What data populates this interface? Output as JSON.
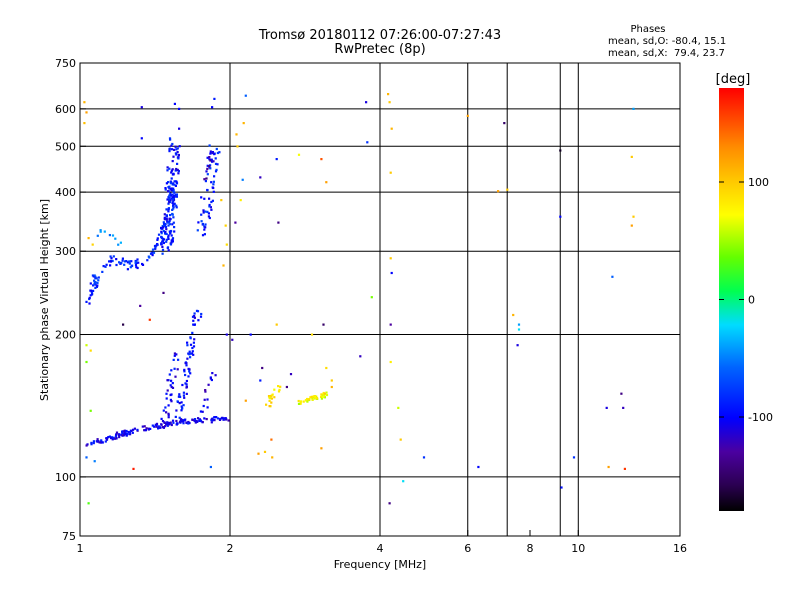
{
  "title_line1": "Tromsø 20180112 07:26:00-07:27:43",
  "title_line2": "RwPretec (8p)",
  "stats": {
    "heading": "Phases",
    "o_line": "mean, sd,O: -80.4, 15.1",
    "x_line": "mean, sd,X:  79.4, 23.7"
  },
  "colorbar": {
    "label": "[deg]",
    "ticks": [
      "100",
      "0",
      "-100"
    ],
    "tick_values": [
      100,
      0,
      -100
    ],
    "range": [
      -180,
      180
    ]
  },
  "chart_data": {
    "type": "scatter",
    "xlabel": "Frequency [MHz]",
    "ylabel": "Stationary phase Virtual Height [km]",
    "xscale": "log",
    "yscale": "log",
    "xlim": [
      1,
      16
    ],
    "ylim": [
      75,
      750
    ],
    "x_ticks": [
      1,
      2,
      4,
      6,
      8,
      10,
      16
    ],
    "x_tick_labels": [
      "1",
      "2",
      "4",
      "6",
      "8",
      "10",
      "16"
    ],
    "y_ticks": [
      75,
      100,
      200,
      300,
      400,
      500,
      600,
      750
    ],
    "y_tick_labels": [
      "75",
      "100",
      "200",
      "300",
      "400",
      "500",
      "600",
      "750"
    ],
    "grid_x": [
      2,
      4,
      6,
      7.2,
      9.2,
      10
    ],
    "grid_y": [
      100,
      200,
      300,
      400,
      500,
      600
    ],
    "grid": true,
    "traces": [
      {
        "f": [
          1.03,
          1.06,
          1.09,
          1.12,
          1.16,
          1.2,
          1.24,
          1.27,
          1.3,
          1.33,
          1.36,
          1.39,
          1.42,
          1.45,
          1.48,
          1.52,
          1.56,
          1.6,
          1.65,
          1.7,
          1.75,
          1.8,
          1.85,
          1.9,
          1.95,
          1.98
        ],
        "h": [
          116,
          118,
          119,
          120,
          121,
          123,
          124,
          125,
          126,
          126,
          127,
          127,
          128,
          128,
          129,
          130,
          130,
          131,
          131,
          131,
          132,
          132,
          132,
          133,
          133,
          133
        ],
        "phase": -105,
        "jitter": 2.5,
        "n": 170
      },
      {
        "f": [
          1.48,
          1.5,
          1.52,
          1.55,
          1.57
        ],
        "h": [
          130,
          142,
          158,
          170,
          185
        ],
        "phase": -100,
        "jitter": 4,
        "n": 35
      },
      {
        "f": [
          1.58,
          1.61,
          1.64,
          1.66,
          1.68,
          1.7,
          1.73
        ],
        "h": [
          135,
          150,
          168,
          185,
          200,
          215,
          225
        ],
        "phase": -95,
        "jitter": 4,
        "n": 70
      },
      {
        "f": [
          1.76,
          1.8,
          1.86
        ],
        "h": [
          135,
          150,
          165
        ],
        "phase": -110,
        "jitter": 3,
        "n": 14
      },
      {
        "f": [
          1.02,
          1.05,
          1.08,
          1.12,
          1.16,
          1.2,
          1.25,
          1.3,
          1.35,
          1.38,
          1.41,
          1.44,
          1.46,
          1.48,
          1.5,
          1.52,
          1.53
        ],
        "h": [
          228,
          245,
          262,
          280,
          290,
          285,
          280,
          282,
          285,
          290,
          300,
          310,
          320,
          335,
          350,
          380,
          420
        ],
        "phase": -85,
        "jitter": 4,
        "n": 150
      },
      {
        "f": [
          1.5,
          1.51,
          1.52,
          1.53,
          1.54,
          1.55
        ],
        "h": [
          300,
          340,
          380,
          420,
          470,
          510
        ],
        "phase": -95,
        "jitter": 6,
        "n": 130
      },
      {
        "f": [
          1.74,
          1.77,
          1.8,
          1.82,
          1.84,
          1.86
        ],
        "h": [
          330,
          350,
          380,
          410,
          450,
          500
        ],
        "phase": -90,
        "jitter": 6,
        "n": 60
      },
      {
        "f": [
          1.78,
          1.81,
          1.84
        ],
        "h": [
          420,
          450,
          480
        ],
        "phase": -125,
        "jitter": 4,
        "n": 10
      },
      {
        "f": [
          2.38,
          2.42,
          2.46,
          2.5
        ],
        "h": [
          142,
          148,
          152,
          155
        ],
        "phase": 85,
        "jitter": 3,
        "n": 18
      },
      {
        "f": [
          2.75,
          2.85,
          2.95,
          3.05,
          3.12
        ],
        "h": [
          144,
          146,
          147,
          148,
          150
        ],
        "phase": 70,
        "jitter": 2,
        "n": 45
      },
      {
        "f": [
          1.1,
          1.16,
          1.22
        ],
        "h": [
          330,
          320,
          310
        ],
        "phase": -40,
        "jitter": 4,
        "n": 8
      }
    ],
    "points": [
      {
        "f": 1.02,
        "h": 620,
        "phase": 110
      },
      {
        "f": 1.03,
        "h": 590,
        "phase": 120
      },
      {
        "f": 1.02,
        "h": 560,
        "phase": 105
      },
      {
        "f": 1.04,
        "h": 320,
        "phase": 110
      },
      {
        "f": 1.06,
        "h": 310,
        "phase": 95
      },
      {
        "f": 1.03,
        "h": 190,
        "phase": 60
      },
      {
        "f": 1.05,
        "h": 185,
        "phase": 90
      },
      {
        "f": 1.03,
        "h": 175,
        "phase": 40
      },
      {
        "f": 1.05,
        "h": 138,
        "phase": 40
      },
      {
        "f": 1.03,
        "h": 110,
        "phase": -60
      },
      {
        "f": 1.07,
        "h": 108,
        "phase": -50
      },
      {
        "f": 1.04,
        "h": 88,
        "phase": 30
      },
      {
        "f": 1.1,
        "h": 330,
        "phase": -40
      },
      {
        "f": 1.22,
        "h": 210,
        "phase": -160
      },
      {
        "f": 1.32,
        "h": 230,
        "phase": -130
      },
      {
        "f": 1.38,
        "h": 215,
        "phase": 160
      },
      {
        "f": 1.33,
        "h": 605,
        "phase": -110
      },
      {
        "f": 1.33,
        "h": 520,
        "phase": -100
      },
      {
        "f": 1.28,
        "h": 104,
        "phase": 170
      },
      {
        "f": 1.47,
        "h": 245,
        "phase": -140
      },
      {
        "f": 1.55,
        "h": 615,
        "phase": -100
      },
      {
        "f": 1.58,
        "h": 545,
        "phase": -110
      },
      {
        "f": 1.58,
        "h": 600,
        "phase": -100
      },
      {
        "f": 1.75,
        "h": 390,
        "phase": -100
      },
      {
        "f": 1.84,
        "h": 605,
        "phase": -100
      },
      {
        "f": 1.86,
        "h": 630,
        "phase": -90
      },
      {
        "f": 1.83,
        "h": 105,
        "phase": -60
      },
      {
        "f": 1.92,
        "h": 385,
        "phase": 100
      },
      {
        "f": 1.96,
        "h": 340,
        "phase": 95
      },
      {
        "f": 1.97,
        "h": 310,
        "phase": 90
      },
      {
        "f": 1.94,
        "h": 280,
        "phase": 110
      },
      {
        "f": 1.97,
        "h": 200,
        "phase": -110
      },
      {
        "f": 2.02,
        "h": 195,
        "phase": -120
      },
      {
        "f": 2.05,
        "h": 345,
        "phase": -130
      },
      {
        "f": 2.06,
        "h": 530,
        "phase": 110
      },
      {
        "f": 2.07,
        "h": 500,
        "phase": 100
      },
      {
        "f": 2.1,
        "h": 385,
        "phase": 80
      },
      {
        "f": 2.13,
        "h": 560,
        "phase": 110
      },
      {
        "f": 2.15,
        "h": 640,
        "phase": -60
      },
      {
        "f": 2.12,
        "h": 425,
        "phase": -50
      },
      {
        "f": 2.15,
        "h": 145,
        "phase": 120
      },
      {
        "f": 2.2,
        "h": 200,
        "phase": -100
      },
      {
        "f": 2.3,
        "h": 430,
        "phase": -120
      },
      {
        "f": 2.32,
        "h": 170,
        "phase": -140
      },
      {
        "f": 2.3,
        "h": 160,
        "phase": -90
      },
      {
        "f": 2.28,
        "h": 112,
        "phase": 120
      },
      {
        "f": 2.35,
        "h": 113,
        "phase": 100
      },
      {
        "f": 2.43,
        "h": 110,
        "phase": 110
      },
      {
        "f": 2.42,
        "h": 120,
        "phase": 140
      },
      {
        "f": 2.48,
        "h": 470,
        "phase": -90
      },
      {
        "f": 2.48,
        "h": 210,
        "phase": 100
      },
      {
        "f": 2.5,
        "h": 345,
        "phase": -140
      },
      {
        "f": 2.6,
        "h": 155,
        "phase": -140
      },
      {
        "f": 2.65,
        "h": 165,
        "phase": -120
      },
      {
        "f": 2.75,
        "h": 480,
        "phase": 70
      },
      {
        "f": 2.92,
        "h": 200,
        "phase": 90
      },
      {
        "f": 3.05,
        "h": 470,
        "phase": 150
      },
      {
        "f": 3.12,
        "h": 420,
        "phase": 120
      },
      {
        "f": 3.05,
        "h": 115,
        "phase": 120
      },
      {
        "f": 3.1,
        "h": 150,
        "phase": 100
      },
      {
        "f": 3.12,
        "h": 170,
        "phase": 90
      },
      {
        "f": 3.08,
        "h": 210,
        "phase": -150
      },
      {
        "f": 3.2,
        "h": 160,
        "phase": 100
      },
      {
        "f": 3.2,
        "h": 155,
        "phase": 110
      },
      {
        "f": 3.75,
        "h": 620,
        "phase": -110
      },
      {
        "f": 3.77,
        "h": 510,
        "phase": -80
      },
      {
        "f": 3.85,
        "h": 240,
        "phase": 40
      },
      {
        "f": 3.65,
        "h": 180,
        "phase": -120
      },
      {
        "f": 4.15,
        "h": 645,
        "phase": 110
      },
      {
        "f": 4.18,
        "h": 620,
        "phase": 100
      },
      {
        "f": 4.2,
        "h": 440,
        "phase": 100
      },
      {
        "f": 4.22,
        "h": 545,
        "phase": 110
      },
      {
        "f": 4.2,
        "h": 290,
        "phase": 100
      },
      {
        "f": 4.22,
        "h": 270,
        "phase": -100
      },
      {
        "f": 4.2,
        "h": 210,
        "phase": -130
      },
      {
        "f": 4.2,
        "h": 175,
        "phase": 80
      },
      {
        "f": 4.18,
        "h": 88,
        "phase": -140
      },
      {
        "f": 4.35,
        "h": 140,
        "phase": 60
      },
      {
        "f": 4.4,
        "h": 120,
        "phase": 100
      },
      {
        "f": 4.45,
        "h": 98,
        "phase": -20
      },
      {
        "f": 4.9,
        "h": 110,
        "phase": -80
      },
      {
        "f": 6.0,
        "h": 580,
        "phase": 120
      },
      {
        "f": 6.3,
        "h": 105,
        "phase": -100
      },
      {
        "f": 6.9,
        "h": 402,
        "phase": 120
      },
      {
        "f": 7.2,
        "h": 405,
        "phase": 100
      },
      {
        "f": 7.1,
        "h": 560,
        "phase": -150
      },
      {
        "f": 7.4,
        "h": 220,
        "phase": 110
      },
      {
        "f": 7.6,
        "h": 210,
        "phase": -40
      },
      {
        "f": 7.6,
        "h": 205,
        "phase": -20
      },
      {
        "f": 7.55,
        "h": 190,
        "phase": -110
      },
      {
        "f": 9.2,
        "h": 490,
        "phase": -170
      },
      {
        "f": 9.2,
        "h": 355,
        "phase": -100
      },
      {
        "f": 9.25,
        "h": 95,
        "phase": -95
      },
      {
        "f": 9.8,
        "h": 110,
        "phase": -80
      },
      {
        "f": 11.4,
        "h": 140,
        "phase": -110
      },
      {
        "f": 11.5,
        "h": 105,
        "phase": 120
      },
      {
        "f": 11.7,
        "h": 265,
        "phase": -60
      },
      {
        "f": 12.2,
        "h": 150,
        "phase": -140
      },
      {
        "f": 12.3,
        "h": 140,
        "phase": -120
      },
      {
        "f": 12.4,
        "h": 104,
        "phase": 160
      },
      {
        "f": 12.8,
        "h": 475,
        "phase": 100
      },
      {
        "f": 12.9,
        "h": 600,
        "phase": -40
      },
      {
        "f": 12.9,
        "h": 355,
        "phase": 100
      },
      {
        "f": 12.8,
        "h": 340,
        "phase": 120
      }
    ]
  }
}
